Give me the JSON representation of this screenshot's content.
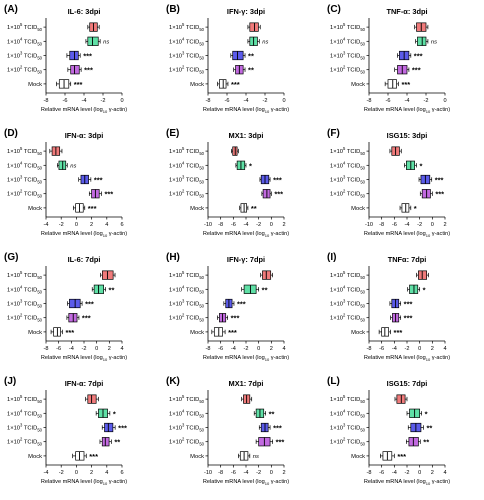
{
  "figure": {
    "categories": [
      "1×10^5 TCID50",
      "1×10^4 TCID50",
      "1×10^3 TCID50",
      "1×10^2 TCID50",
      "Mock"
    ],
    "xlabel": "Relative mRNA level (log10 γ-actin)",
    "colors": {
      "1×10^5 TCID50": "#f07b7b",
      "1×10^4 TCID50": "#5fe0a6",
      "1×10^3 TCID50": "#5b5bea",
      "1×10^2 TCID50": "#c26ae0",
      "Mock": "#ffffff"
    }
  },
  "chart_data": [
    {
      "type": "boxplot",
      "panel": "(A)",
      "title": "IL-6: 3dpi",
      "xlim": [
        -8,
        0
      ],
      "xticks": [
        -8,
        -6,
        -4,
        -2,
        0
      ],
      "series": [
        {
          "name": "1×10^5 TCID50",
          "box": [
            -3.4,
            -2.6
          ],
          "median": -3.0,
          "whisker": [
            -3.6,
            -2.4
          ],
          "sig": ""
        },
        {
          "name": "1×10^4 TCID50",
          "box": [
            -3.6,
            -2.5
          ],
          "median": -3.1,
          "whisker": [
            -3.8,
            -2.3
          ],
          "sig": "ns"
        },
        {
          "name": "1×10^3 TCID50",
          "box": [
            -5.5,
            -4.6
          ],
          "median": -5.0,
          "whisker": [
            -5.8,
            -4.4
          ],
          "sig": "***"
        },
        {
          "name": "1×10^2 TCID50",
          "box": [
            -5.4,
            -4.5
          ],
          "median": -5.0,
          "whisker": [
            -5.7,
            -4.3
          ],
          "sig": "***"
        },
        {
          "name": "Mock",
          "box": [
            -6.6,
            -5.6
          ],
          "median": -6.1,
          "whisker": [
            -6.9,
            -5.4
          ],
          "sig": "***"
        }
      ]
    },
    {
      "type": "boxplot",
      "panel": "(B)",
      "title": "IFN-γ: 3dpi",
      "xlim": [
        -8,
        0
      ],
      "xticks": [
        -8,
        -6,
        -4,
        -2,
        0
      ],
      "series": [
        {
          "name": "1×10^5 TCID50",
          "box": [
            -3.6,
            -2.7
          ],
          "median": -3.1,
          "whisker": [
            -3.8,
            -2.5
          ],
          "sig": ""
        },
        {
          "name": "1×10^4 TCID50",
          "box": [
            -3.6,
            -2.8
          ],
          "median": -3.2,
          "whisker": [
            -3.8,
            -2.6
          ],
          "sig": "ns"
        },
        {
          "name": "1×10^3 TCID50",
          "box": [
            -5.4,
            -4.3
          ],
          "median": -4.9,
          "whisker": [
            -5.6,
            -4.1
          ],
          "sig": "**"
        },
        {
          "name": "1×10^2 TCID50",
          "box": [
            -5.1,
            -4.3
          ],
          "median": -4.7,
          "whisker": [
            -5.3,
            -4.1
          ],
          "sig": "**"
        },
        {
          "name": "Mock",
          "box": [
            -6.8,
            -6.1
          ],
          "median": -6.4,
          "whisker": [
            -7.0,
            -5.9
          ],
          "sig": "***"
        }
      ]
    },
    {
      "type": "boxplot",
      "panel": "(C)",
      "title": "TNF-α: 3dpi",
      "xlim": [
        -8,
        0
      ],
      "xticks": [
        -8,
        -6,
        -4,
        -2,
        0
      ],
      "series": [
        {
          "name": "1×10^5 TCID50",
          "box": [
            -3.0,
            -2.0
          ],
          "median": -2.5,
          "whisker": [
            -3.2,
            -1.8
          ],
          "sig": ""
        },
        {
          "name": "1×10^4 TCID50",
          "box": [
            -2.9,
            -2.0
          ],
          "median": -2.4,
          "whisker": [
            -3.1,
            -1.8
          ],
          "sig": "ns"
        },
        {
          "name": "1×10^3 TCID50",
          "box": [
            -4.8,
            -3.8
          ],
          "median": -4.3,
          "whisker": [
            -5.0,
            -3.6
          ],
          "sig": "***"
        },
        {
          "name": "1×10^2 TCID50",
          "box": [
            -5.0,
            -4.0
          ],
          "median": -4.5,
          "whisker": [
            -5.3,
            -3.8
          ],
          "sig": "***"
        },
        {
          "name": "Mock",
          "box": [
            -6.0,
            -5.1
          ],
          "median": -5.5,
          "whisker": [
            -6.3,
            -4.9
          ],
          "sig": "***"
        }
      ]
    },
    {
      "type": "boxplot",
      "panel": "(D)",
      "title": "IFN-α: 3dpi",
      "xlim": [
        -4,
        6
      ],
      "xticks": [
        -4,
        -2,
        0,
        2,
        4,
        6
      ],
      "series": [
        {
          "name": "1×10^5 TCID50",
          "box": [
            -3.2,
            -2.2
          ],
          "median": -2.7,
          "whisker": [
            -3.5,
            -1.9
          ],
          "sig": ""
        },
        {
          "name": "1×10^4 TCID50",
          "box": [
            -2.3,
            -1.4
          ],
          "median": -1.8,
          "whisker": [
            -2.5,
            -1.2
          ],
          "sig": "ns"
        },
        {
          "name": "1×10^3 TCID50",
          "box": [
            0.6,
            1.6
          ],
          "median": 1.1,
          "whisker": [
            0.3,
            1.9
          ],
          "sig": "***"
        },
        {
          "name": "1×10^2 TCID50",
          "box": [
            2.0,
            3.0
          ],
          "median": 2.5,
          "whisker": [
            1.7,
            3.3
          ],
          "sig": "***"
        },
        {
          "name": "Mock",
          "box": [
            -0.1,
            0.9
          ],
          "median": 0.4,
          "whisker": [
            -0.4,
            1.1
          ],
          "sig": "***"
        }
      ]
    },
    {
      "type": "boxplot",
      "panel": "(E)",
      "title": "MX1: 3dpi",
      "xlim": [
        -10,
        2
      ],
      "xticks": [
        -10,
        -8,
        -6,
        -4,
        -2,
        0,
        2
      ],
      "series": [
        {
          "name": "1×10^5 TCID50",
          "box": [
            -6.1,
            -5.4
          ],
          "median": -5.7,
          "whisker": [
            -6.3,
            -5.2
          ],
          "sig": ""
        },
        {
          "name": "1×10^4 TCID50",
          "box": [
            -5.4,
            -4.2
          ],
          "median": -4.8,
          "whisker": [
            -5.6,
            -4.0
          ],
          "sig": "*"
        },
        {
          "name": "1×10^3 TCID50",
          "box": [
            -1.6,
            -0.4
          ],
          "median": -1.0,
          "whisker": [
            -1.8,
            -0.2
          ],
          "sig": "***"
        },
        {
          "name": "1×10^2 TCID50",
          "box": [
            -1.3,
            -0.2
          ],
          "median": -0.7,
          "whisker": [
            -1.5,
            0.0
          ],
          "sig": "***"
        },
        {
          "name": "Mock",
          "box": [
            -4.8,
            -3.9
          ],
          "median": -4.3,
          "whisker": [
            -5.0,
            -3.7
          ],
          "sig": "**"
        }
      ]
    },
    {
      "type": "boxplot",
      "panel": "(F)",
      "title": "ISG15: 3dpi",
      "xlim": [
        -10,
        2
      ],
      "xticks": [
        -10,
        -8,
        -6,
        -4,
        -2,
        0,
        2
      ],
      "series": [
        {
          "name": "1×10^5 TCID50",
          "box": [
            -6.4,
            -5.2
          ],
          "median": -5.8,
          "whisker": [
            -6.7,
            -4.9
          ],
          "sig": ""
        },
        {
          "name": "1×10^4 TCID50",
          "box": [
            -4.1,
            -2.8
          ],
          "median": -3.4,
          "whisker": [
            -4.4,
            -2.5
          ],
          "sig": "*"
        },
        {
          "name": "1×10^3 TCID50",
          "box": [
            -1.8,
            -0.4
          ],
          "median": -1.1,
          "whisker": [
            -2.1,
            -0.1
          ],
          "sig": "***"
        },
        {
          "name": "1×10^2 TCID50",
          "box": [
            -1.6,
            -0.3
          ],
          "median": -0.9,
          "whisker": [
            -1.9,
            0.0
          ],
          "sig": "***"
        },
        {
          "name": "Mock",
          "box": [
            -4.8,
            -3.7
          ],
          "median": -4.2,
          "whisker": [
            -5.1,
            -3.4
          ],
          "sig": "*"
        }
      ]
    },
    {
      "type": "boxplot",
      "panel": "(G)",
      "title": "IL-6: 7dpi",
      "xlim": [
        -8,
        4
      ],
      "xticks": [
        -8,
        -6,
        -4,
        -2,
        0,
        2,
        4
      ],
      "series": [
        {
          "name": "1×10^5 TCID50",
          "box": [
            0.9,
            2.6
          ],
          "median": 1.7,
          "whisker": [
            0.6,
            2.9
          ],
          "sig": ""
        },
        {
          "name": "1×10^4 TCID50",
          "box": [
            -0.4,
            1.1
          ],
          "median": 0.3,
          "whisker": [
            -0.7,
            1.4
          ],
          "sig": "**"
        },
        {
          "name": "1×10^3 TCID50",
          "box": [
            -4.3,
            -2.6
          ],
          "median": -3.4,
          "whisker": [
            -4.6,
            -2.3
          ],
          "sig": "***"
        },
        {
          "name": "1×10^2 TCID50",
          "box": [
            -4.4,
            -3.1
          ],
          "median": -3.7,
          "whisker": [
            -4.7,
            -2.8
          ],
          "sig": "***"
        },
        {
          "name": "Mock",
          "box": [
            -6.8,
            -5.7
          ],
          "median": -6.2,
          "whisker": [
            -7.2,
            -5.4
          ],
          "sig": "***"
        }
      ]
    },
    {
      "type": "boxplot",
      "panel": "(H)",
      "title": "IFN-γ: 7dpi",
      "xlim": [
        -8,
        4
      ],
      "xticks": [
        -8,
        -6,
        -4,
        -2,
        0,
        2,
        4
      ],
      "series": [
        {
          "name": "1×10^5 TCID50",
          "box": [
            0.6,
            1.9
          ],
          "median": 1.2,
          "whisker": [
            0.3,
            2.2
          ],
          "sig": ""
        },
        {
          "name": "1×10^4 TCID50",
          "box": [
            -2.3,
            -0.4
          ],
          "median": -1.3,
          "whisker": [
            -2.7,
            0.0
          ],
          "sig": "**"
        },
        {
          "name": "1×10^3 TCID50",
          "box": [
            -5.2,
            -4.2
          ],
          "median": -4.7,
          "whisker": [
            -5.5,
            -3.9
          ],
          "sig": "***"
        },
        {
          "name": "1×10^2 TCID50",
          "box": [
            -6.2,
            -5.2
          ],
          "median": -5.7,
          "whisker": [
            -6.5,
            -4.9
          ],
          "sig": "***"
        },
        {
          "name": "Mock",
          "box": [
            -7.0,
            -5.7
          ],
          "median": -6.3,
          "whisker": [
            -7.4,
            -5.3
          ],
          "sig": "***"
        }
      ]
    },
    {
      "type": "boxplot",
      "panel": "(I)",
      "title": "TNFα: 7dpi",
      "xlim": [
        -8,
        4
      ],
      "xticks": [
        -8,
        -6,
        -4,
        -2,
        0,
        2,
        4
      ],
      "series": [
        {
          "name": "1×10^5 TCID50",
          "box": [
            -0.2,
            1.1
          ],
          "median": 0.4,
          "whisker": [
            -0.5,
            1.4
          ],
          "sig": ""
        },
        {
          "name": "1×10^4 TCID50",
          "box": [
            -1.6,
            -0.3
          ],
          "median": -0.9,
          "whisker": [
            -1.9,
            0.0
          ],
          "sig": "*"
        },
        {
          "name": "1×10^3 TCID50",
          "box": [
            -4.4,
            -3.3
          ],
          "median": -3.8,
          "whisker": [
            -4.7,
            -3.0
          ],
          "sig": "***"
        },
        {
          "name": "1×10^2 TCID50",
          "box": [
            -4.3,
            -3.3
          ],
          "median": -3.8,
          "whisker": [
            -4.6,
            -3.0
          ],
          "sig": "***"
        },
        {
          "name": "Mock",
          "box": [
            -6.0,
            -4.9
          ],
          "median": -5.5,
          "whisker": [
            -6.4,
            -4.6
          ],
          "sig": "***"
        }
      ]
    },
    {
      "type": "boxplot",
      "panel": "(J)",
      "title": "IFN-α: 7dpi",
      "xlim": [
        -4,
        6
      ],
      "xticks": [
        -4,
        -2,
        0,
        2,
        4,
        6
      ],
      "series": [
        {
          "name": "1×10^5 TCID50",
          "box": [
            1.5,
            2.6
          ],
          "median": 2.0,
          "whisker": [
            1.2,
            2.9
          ],
          "sig": ""
        },
        {
          "name": "1×10^4 TCID50",
          "box": [
            2.9,
            4.1
          ],
          "median": 3.5,
          "whisker": [
            2.6,
            4.4
          ],
          "sig": "*"
        },
        {
          "name": "1×10^3 TCID50",
          "box": [
            3.7,
            4.8
          ],
          "median": 4.2,
          "whisker": [
            3.4,
            5.1
          ],
          "sig": "***"
        },
        {
          "name": "1×10^2 TCID50",
          "box": [
            3.4,
            4.3
          ],
          "median": 3.8,
          "whisker": [
            3.1,
            4.6
          ],
          "sig": "**"
        },
        {
          "name": "Mock",
          "box": [
            -0.1,
            1.0
          ],
          "median": 0.4,
          "whisker": [
            -0.5,
            1.3
          ],
          "sig": "***"
        }
      ]
    },
    {
      "type": "boxplot",
      "panel": "(K)",
      "title": "MX1: 7dpi",
      "xlim": [
        -10,
        2
      ],
      "xticks": [
        -10,
        -8,
        -6,
        -4,
        -2,
        0,
        2
      ],
      "series": [
        {
          "name": "1×10^5 TCID50",
          "box": [
            -4.4,
            -3.4
          ],
          "median": -3.9,
          "whisker": [
            -4.7,
            -3.1
          ],
          "sig": ""
        },
        {
          "name": "1×10^4 TCID50",
          "box": [
            -2.4,
            -1.2
          ],
          "median": -1.8,
          "whisker": [
            -2.7,
            -0.9
          ],
          "sig": "**"
        },
        {
          "name": "1×10^3 TCID50",
          "box": [
            -1.6,
            -0.5
          ],
          "median": -1.0,
          "whisker": [
            -1.9,
            -0.2
          ],
          "sig": "***"
        },
        {
          "name": "1×10^2 TCID50",
          "box": [
            -2.0,
            -0.2
          ],
          "median": -1.1,
          "whisker": [
            -2.4,
            0.2
          ],
          "sig": "***"
        },
        {
          "name": "Mock",
          "box": [
            -4.9,
            -3.7
          ],
          "median": -4.3,
          "whisker": [
            -5.2,
            -3.4
          ],
          "sig": "ns"
        }
      ]
    },
    {
      "type": "boxplot",
      "panel": "(L)",
      "title": "ISG15: 7dpi",
      "xlim": [
        -8,
        4
      ],
      "xticks": [
        -8,
        -6,
        -4,
        -2,
        0,
        2,
        4
      ],
      "series": [
        {
          "name": "1×10^5 TCID50",
          "box": [
            -3.6,
            -2.3
          ],
          "median": -2.9,
          "whisker": [
            -3.9,
            -2.0
          ],
          "sig": ""
        },
        {
          "name": "1×10^4 TCID50",
          "box": [
            -1.6,
            0.0
          ],
          "median": -0.8,
          "whisker": [
            -2.0,
            0.3
          ],
          "sig": "*"
        },
        {
          "name": "1×10^3 TCID50",
          "box": [
            -1.4,
            0.2
          ],
          "median": -0.6,
          "whisker": [
            -1.8,
            0.6
          ],
          "sig": "**"
        },
        {
          "name": "1×10^2 TCID50",
          "box": [
            -1.7,
            -0.2
          ],
          "median": -1.0,
          "whisker": [
            -2.1,
            0.1
          ],
          "sig": "**"
        },
        {
          "name": "Mock",
          "box": [
            -5.8,
            -4.4
          ],
          "median": -5.1,
          "whisker": [
            -6.2,
            -4.0
          ],
          "sig": "***"
        }
      ]
    }
  ]
}
